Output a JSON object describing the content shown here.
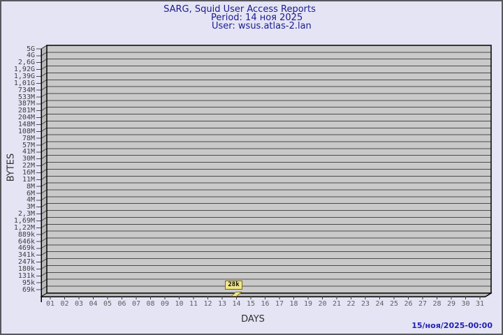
{
  "header": {
    "title": "SARG, Squid User Access Reports",
    "period": "Period: 14 ноя 2025",
    "user": "User: wsus.atlas-2.lan"
  },
  "footer": {
    "timestamp": "15/ноя/2025-00:00"
  },
  "colors": {
    "page_background": "#e4e4f5",
    "title_text": "#1b1b8e",
    "footer_text": "#2222b2",
    "plot_background": "#c9c9c9",
    "wall_floor": "#b9b9b9",
    "grid_line": "#4b4b4b",
    "axis_line": "#000000",
    "bar_fill": "#f2e4a0",
    "bar_stroke": "#8e7d2e",
    "bar_label_bg": "#f0e68c",
    "bar_label_border": "#786800"
  },
  "chart_data": {
    "type": "bar",
    "title": "SARG, Squid User Access Reports",
    "subtitle": [
      "Period: 14 ноя 2025",
      "User: wsus.atlas-2.lan"
    ],
    "xlabel": "DAYS",
    "ylabel": "BYTES",
    "y_scale": "log",
    "grid": true,
    "style_3d": true,
    "y_tick_labels": [
      "5G",
      "4G",
      "2,6G",
      "1,92G",
      "1,39G",
      "1,01G",
      "734M",
      "533M",
      "387M",
      "281M",
      "204M",
      "148M",
      "108M",
      "78M",
      "57M",
      "41M",
      "30M",
      "22M",
      "16M",
      "11M",
      "8M",
      "6M",
      "4M",
      "3M",
      "2,3M",
      "1,69M",
      "1,22M",
      "889k",
      "646k",
      "469k",
      "341k",
      "247k",
      "180k",
      "131k",
      "95k",
      "69k"
    ],
    "x_tick_labels": [
      "01",
      "02",
      "03",
      "04",
      "05",
      "06",
      "07",
      "08",
      "09",
      "10",
      "11",
      "12",
      "13",
      "14",
      "15",
      "16",
      "17",
      "18",
      "19",
      "20",
      "21",
      "22",
      "23",
      "24",
      "25",
      "26",
      "27",
      "28",
      "29",
      "30",
      "31"
    ],
    "bars": [
      {
        "day": "14",
        "label": "28k",
        "value_bytes": 28000
      }
    ]
  }
}
